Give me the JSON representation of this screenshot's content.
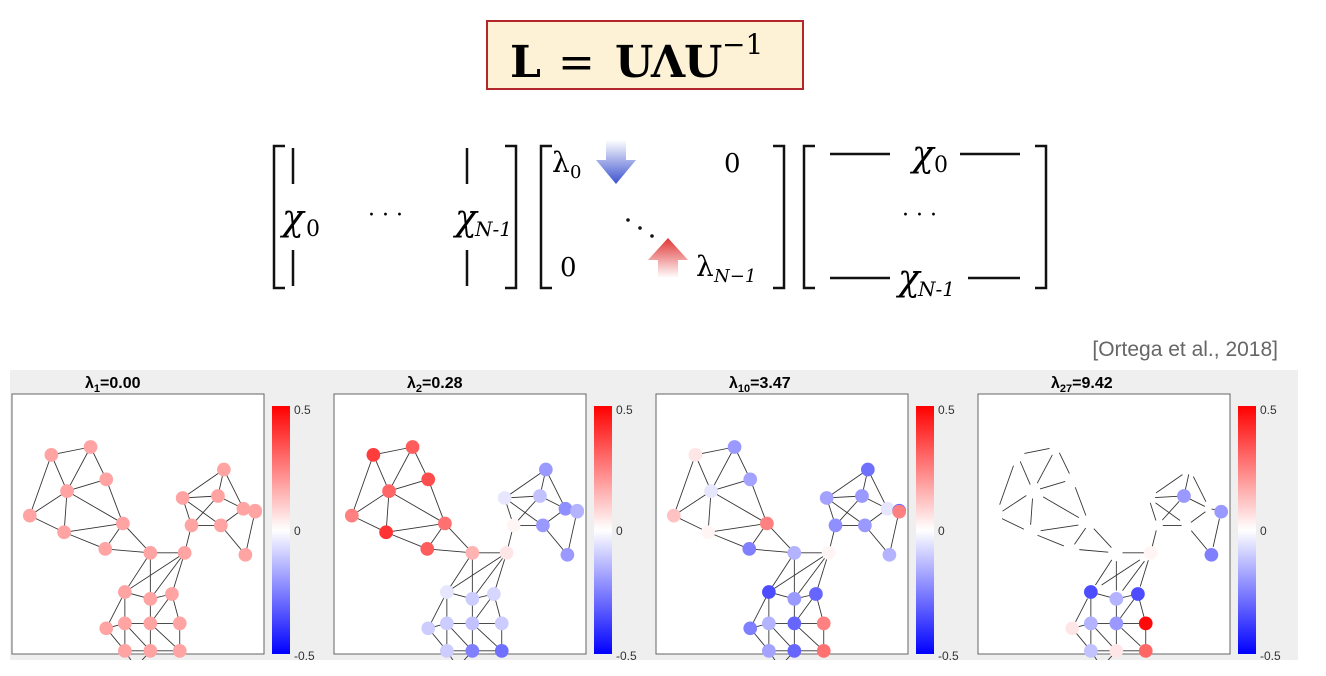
{
  "formula": {
    "lhs": "L",
    "eq": "=",
    "rhs_u": "U",
    "rhs_lambda": "Λ",
    "rhs_u2": "U",
    "rhs_exp": "−1"
  },
  "matrix": {
    "col0": "χ",
    "col0_sub": "0",
    "dots": "· · ·",
    "colN": "χ",
    "colN_sub": "N-1",
    "lambda0": "λ",
    "lambda0_sub": "0",
    "lambdaN": "λ",
    "lambdaN_sub": "N−1",
    "zero": "0",
    "row0": "χ",
    "row0_sub": "0",
    "rowN": "χ",
    "rowN_sub": "N-1",
    "row_dots": "· · ·"
  },
  "colors": {
    "arrow_down": "#4d5fd6",
    "arrow_up": "#e04a4a",
    "box_border": "#b2282a",
    "box_fill": "#fdf2d6"
  },
  "citation": "[Ortega et al., 2018]",
  "panels": [
    {
      "lambda_sym": "λ",
      "sub": "1",
      "value": "=0.00",
      "cb_max": "0.5",
      "cb_mid": "0",
      "cb_min": "-0.5",
      "edges_visible": true,
      "node_values": [
        0.18,
        0.18,
        0.18,
        0.18,
        0.18,
        0.18,
        0.18,
        0.18,
        0.18,
        0.18,
        0.18,
        0.18,
        0.18,
        0.18,
        0.18,
        0.18,
        0.18,
        0.18,
        0.18,
        0.18,
        0.18,
        0.18,
        0.18,
        0.18,
        0.18,
        0.18,
        0.18,
        0.18,
        0.18,
        0.18
      ]
    },
    {
      "lambda_sym": "λ",
      "sub": "2",
      "value": "=0.28",
      "cb_max": "0.5",
      "cb_mid": "0",
      "cb_min": "-0.5",
      "edges_visible": true,
      "node_values": [
        0.32,
        0.38,
        0.3,
        0.35,
        0.25,
        0.4,
        0.28,
        0.32,
        0.15,
        0.05,
        0.02,
        -0.05,
        -0.05,
        -0.1,
        -0.08,
        -0.1,
        -0.1,
        -0.12,
        -0.1,
        -0.1,
        -0.25,
        -0.28,
        -0.18,
        -0.2,
        -0.22,
        -0.15,
        -0.2,
        -0.15,
        -0.2,
        -0.12
      ]
    },
    {
      "lambda_sym": "λ",
      "sub": "10",
      "value": "=3.47",
      "cb_max": "0.5",
      "cb_mid": "0",
      "cb_min": "-0.5",
      "edges_visible": true,
      "node_values": [
        -0.2,
        0.05,
        -0.05,
        -0.18,
        0.12,
        0.02,
        0.25,
        -0.25,
        -0.15,
        0.02,
        -0.22,
        -0.18,
        -0.35,
        -0.2,
        -0.3,
        -0.25,
        -0.15,
        -0.3,
        0.25,
        -0.18,
        -0.3,
        0.28,
        0.45,
        -0.28,
        -0.05,
        -0.3,
        -0.2,
        0.25,
        -0.15,
        -0.2
      ]
    },
    {
      "lambda_sym": "λ",
      "sub": "27",
      "value": "=9.42",
      "cb_max": "0.5",
      "cb_mid": "0",
      "cb_min": "-0.5",
      "edges_visible": false,
      "node_values": [
        0,
        0,
        0,
        0,
        0,
        0,
        0,
        0,
        0,
        0.02,
        0,
        0,
        -0.35,
        -0.15,
        -0.35,
        0.05,
        -0.15,
        -0.2,
        0.48,
        -0.12,
        0.05,
        0.3,
        0,
        0,
        0,
        0,
        0,
        -0.2,
        -0.25,
        -0.2
      ]
    }
  ]
}
